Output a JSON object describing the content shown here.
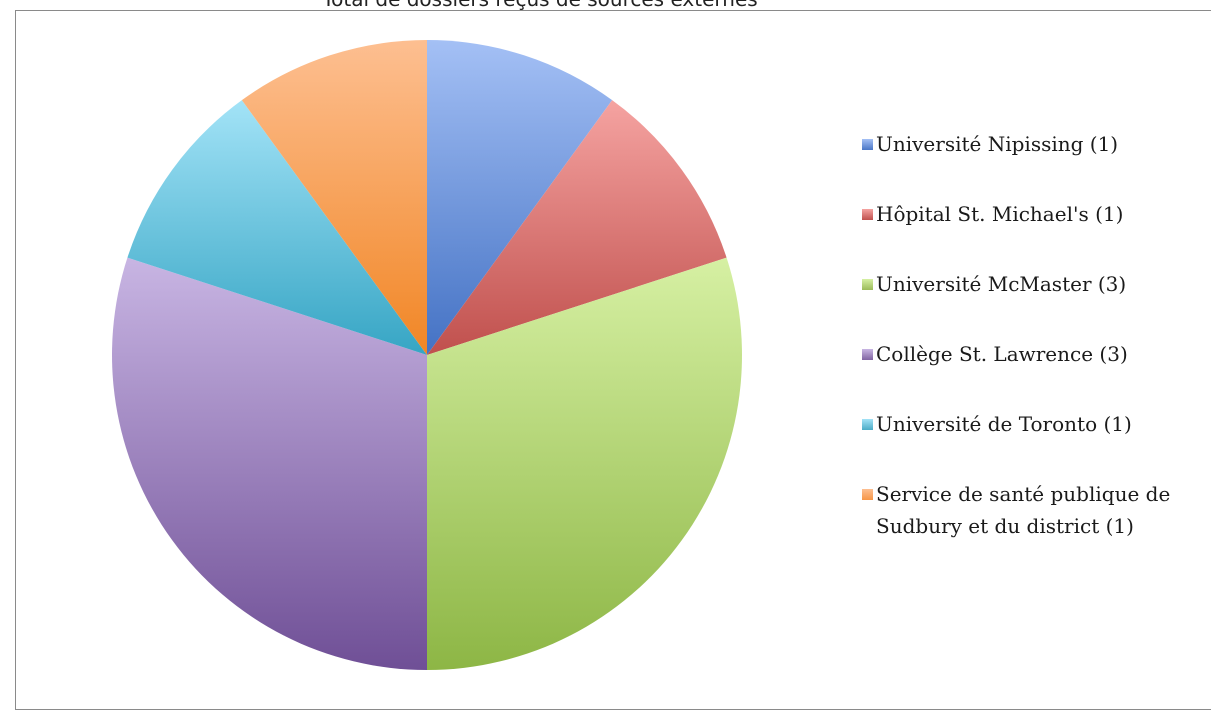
{
  "chart_data": {
    "type": "pie",
    "title": "Total de dossiers reçus de sources externes",
    "legend_position": "right",
    "slices": [
      {
        "label": "Université Nipissing (1)",
        "value": 1,
        "color_light": "#a4c0f5",
        "color_dark": "#4472c4",
        "legend_color": "#4a76c6"
      },
      {
        "label": "Hôpital St. Michael's (1)",
        "value": 1,
        "color_light": "#f5a3a1",
        "color_dark": "#c0504d",
        "legend_color": "#c0504d"
      },
      {
        "label": "Université McMaster (3)",
        "value": 3,
        "color_light": "#d6f0a3",
        "color_dark": "#8db645",
        "legend_color": "#9bbb59"
      },
      {
        "label": "Collège St. Lawrence (3)",
        "value": 3,
        "color_light": "#c8b5e3",
        "color_dark": "#6f4f96",
        "legend_color": "#8064a2"
      },
      {
        "label": "Université de Toronto (1)",
        "value": 1,
        "color_light": "#a3e3f7",
        "color_dark": "#36a5c4",
        "legend_color": "#4bacc6"
      },
      {
        "label": "Service de santé publique de\nSudbury et du district (1)",
        "value": 1,
        "color_light": "#fdbf91",
        "color_dark": "#f18625",
        "legend_color": "#f79646"
      }
    ]
  }
}
